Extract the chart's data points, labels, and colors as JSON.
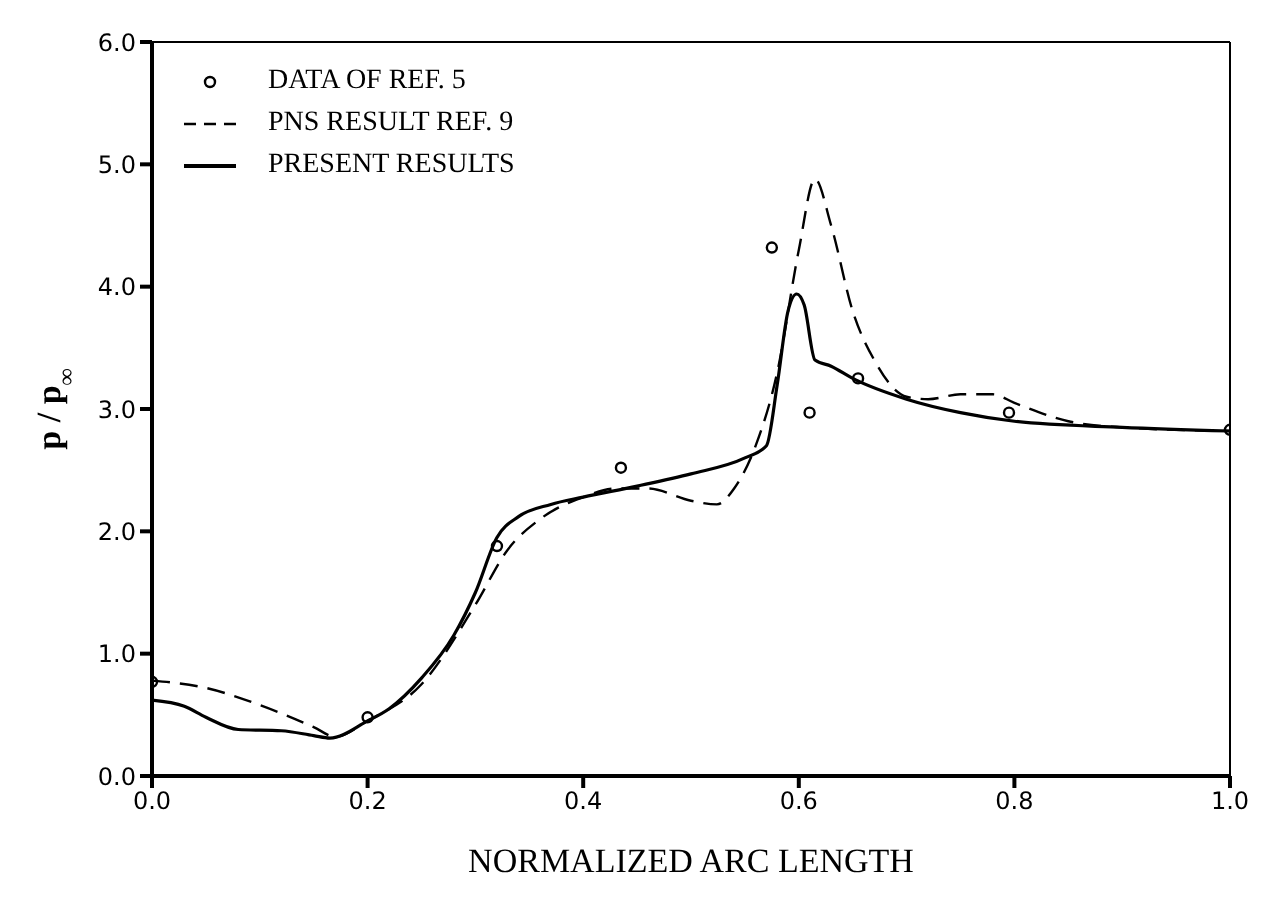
{
  "chart_data": {
    "type": "line",
    "xlabel": "NORMALIZED ARC LENGTH",
    "ylabel": "p / p$_{∞}$",
    "xlim": [
      0,
      1
    ],
    "xticks": [
      {
        "value": 0,
        "label": "0.0"
      },
      {
        "value": 0.2,
        "label": "0.2"
      },
      {
        "value": 0.4,
        "label": "0.4"
      },
      {
        "value": 0.6,
        "label": "0.6"
      },
      {
        "value": 0.8,
        "label": "0.8"
      },
      {
        "value": 1,
        "label": "1.0"
      }
    ],
    "ylim": [
      0,
      6
    ],
    "yticks": [
      {
        "value": 0,
        "label": "0.0"
      },
      {
        "value": 1,
        "label": "1.0"
      },
      {
        "value": 2,
        "label": "2.0"
      },
      {
        "value": 3,
        "label": "3.0"
      },
      {
        "value": 4,
        "label": "4.0"
      },
      {
        "value": 5,
        "label": "5.0"
      },
      {
        "value": 6,
        "label": "6.0"
      }
    ],
    "grid": false,
    "legend": "top left",
    "series": [
      {
        "name": "DATA OF REF.  5",
        "type": "scatter",
        "marker": "circle",
        "color": "#000000",
        "x": [
          0,
          0.2,
          0.32,
          0.435,
          0.575,
          0.61,
          0.655,
          0.795,
          1
        ],
        "values": [
          0.77,
          0.48,
          1.88,
          2.52,
          4.32,
          2.97,
          3.25,
          2.97,
          2.83
        ]
      },
      {
        "name": "PNS RESULT REF. 9",
        "line_style": "dashed",
        "color": "#000000",
        "x": [
          0,
          0.05,
          0.1,
          0.15,
          0.17,
          0.2,
          0.25,
          0.3,
          0.33,
          0.36,
          0.4,
          0.43,
          0.46,
          0.5,
          0.524,
          0.54,
          0.56,
          0.58,
          0.6,
          0.615,
          0.63,
          0.65,
          0.67,
          0.7,
          0.72,
          0.75,
          0.78,
          0.8,
          0.85,
          0.9,
          1
        ],
        "values": [
          0.78,
          0.72,
          0.58,
          0.4,
          0.32,
          0.45,
          0.75,
          1.4,
          1.85,
          2.1,
          2.28,
          2.35,
          2.35,
          2.25,
          2.22,
          2.35,
          2.7,
          3.3,
          4.3,
          4.88,
          4.5,
          3.8,
          3.4,
          3.1,
          3.08,
          3.12,
          3.12,
          3.05,
          2.9,
          2.85,
          2.82
        ]
      },
      {
        "name": "PRESENT RESULTS",
        "line_style": "solid",
        "color": "#000000",
        "x": [
          0,
          0.03,
          0.05,
          0.08,
          0.12,
          0.15,
          0.165,
          0.2,
          0.22,
          0.25,
          0.28,
          0.3,
          0.32,
          0.34,
          0.37,
          0.4,
          0.45,
          0.5,
          0.55,
          0.57,
          0.58,
          0.59,
          0.598,
          0.605,
          0.615,
          0.63,
          0.65,
          0.7,
          0.75,
          0.8,
          0.9,
          1
        ],
        "values": [
          0.62,
          0.57,
          0.48,
          0.38,
          0.37,
          0.33,
          0.31,
          0.45,
          0.55,
          0.8,
          1.15,
          1.5,
          1.95,
          2.12,
          2.22,
          2.28,
          2.37,
          2.47,
          2.6,
          2.7,
          3.2,
          3.8,
          3.94,
          3.85,
          3.4,
          3.35,
          3.25,
          3.08,
          2.97,
          2.9,
          2.85,
          2.82
        ]
      }
    ]
  }
}
